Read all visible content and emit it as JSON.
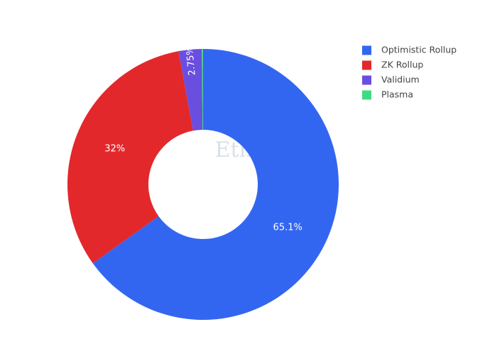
{
  "chart_data": {
    "type": "pie",
    "watermark": "Etherscan",
    "categories": [
      "Optimistic Rollup",
      "ZK Rollup",
      "Validium",
      "Plasma"
    ],
    "values": [
      65.1,
      32,
      2.75,
      0.15
    ],
    "value_labels": [
      "65.1%",
      "32%",
      "2.75%",
      null
    ],
    "colors": [
      "#3366f0",
      "#e3282b",
      "#6a4ee0",
      "#3ddc84"
    ],
    "legend": "top-right"
  }
}
